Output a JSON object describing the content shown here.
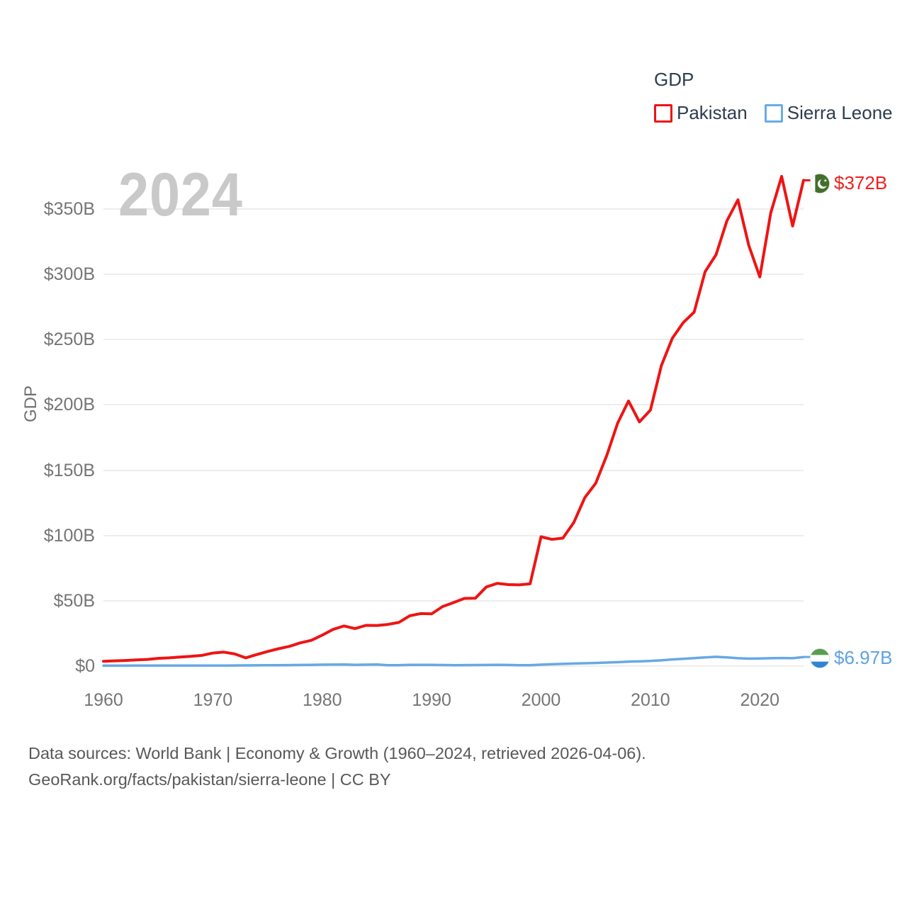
{
  "legend": {
    "title": "GDP",
    "items": [
      {
        "label": "Pakistan",
        "color": "#ee1414"
      },
      {
        "label": "Sierra Leone",
        "color": "#67a9e4"
      }
    ]
  },
  "watermark": "2024",
  "axes": {
    "y_title": "GDP",
    "y_ticks": [
      {
        "value": 0,
        "label": "$0"
      },
      {
        "value": 50,
        "label": "$50B"
      },
      {
        "value": 100,
        "label": "$100B"
      },
      {
        "value": 150,
        "label": "$150B"
      },
      {
        "value": 200,
        "label": "$200B"
      },
      {
        "value": 250,
        "label": "$250B"
      },
      {
        "value": 300,
        "label": "$300B"
      },
      {
        "value": 350,
        "label": "$350B"
      }
    ],
    "x_ticks": [
      {
        "value": 1960,
        "label": "1960"
      },
      {
        "value": 1970,
        "label": "1970"
      },
      {
        "value": 1980,
        "label": "1980"
      },
      {
        "value": 1990,
        "label": "1990"
      },
      {
        "value": 2000,
        "label": "2000"
      },
      {
        "value": 2010,
        "label": "2010"
      },
      {
        "value": 2020,
        "label": "2020"
      }
    ]
  },
  "end_labels": [
    {
      "series": "Pakistan",
      "label": "$372B",
      "flag": "pakistan-flag",
      "color": "#ee2020"
    },
    {
      "series": "Sierra Leone",
      "label": "$6.97B",
      "flag": "sierra-leone-flag",
      "color": "#5ea2e4"
    }
  ],
  "footer": {
    "line1": "Data sources: World Bank | Economy & Growth (1960–2024, retrieved 2026-04-06).",
    "line2": "GeoRank.org/facts/pakistan/sierra-leone | CC BY"
  },
  "chart_data": {
    "type": "line",
    "title": "GDP",
    "xlabel": "",
    "ylabel": "GDP",
    "xlim": [
      1960,
      2024
    ],
    "ylim": [
      0,
      380
    ],
    "grid": "horizontal",
    "legend_position": "top-right",
    "units": "billions of current US$",
    "x": [
      1960,
      1961,
      1962,
      1963,
      1964,
      1965,
      1966,
      1967,
      1968,
      1969,
      1970,
      1971,
      1972,
      1973,
      1974,
      1975,
      1976,
      1977,
      1978,
      1979,
      1980,
      1981,
      1982,
      1983,
      1984,
      1985,
      1986,
      1987,
      1988,
      1989,
      1990,
      1991,
      1992,
      1993,
      1994,
      1995,
      1996,
      1997,
      1998,
      1999,
      2000,
      2001,
      2002,
      2003,
      2004,
      2005,
      2006,
      2007,
      2008,
      2009,
      2010,
      2011,
      2012,
      2013,
      2014,
      2015,
      2016,
      2017,
      2018,
      2019,
      2020,
      2021,
      2022,
      2023,
      2024
    ],
    "series": [
      {
        "name": "Pakistan",
        "color": "#ee1414",
        "end_label": "$372B",
        "values": [
          3.7,
          4.0,
          4.3,
          4.7,
          5.1,
          5.9,
          6.3,
          6.9,
          7.5,
          8.2,
          10.0,
          10.7,
          9.3,
          6.3,
          8.8,
          11.2,
          13.3,
          15.1,
          17.8,
          19.7,
          23.7,
          28.1,
          30.7,
          28.7,
          31.2,
          31.1,
          31.9,
          33.4,
          38.5,
          40.2,
          40.0,
          45.6,
          48.6,
          51.8,
          52.0,
          60.6,
          63.3,
          62.4,
          62.2,
          63.0,
          99.0,
          97.0,
          98.0,
          110.0,
          129.0,
          140.0,
          161.0,
          186.0,
          203.0,
          187.0,
          196.0,
          230.0,
          251.0,
          263.0,
          271.0,
          302.0,
          315.0,
          341.0,
          357.0,
          322.0,
          298.0,
          347.0,
          375.0,
          337.0,
          372.0
        ]
      },
      {
        "name": "Sierra Leone",
        "color": "#67a9e4",
        "end_label": "$6.97B",
        "values": [
          0.32,
          0.33,
          0.35,
          0.36,
          0.38,
          0.4,
          0.39,
          0.37,
          0.36,
          0.4,
          0.43,
          0.45,
          0.49,
          0.55,
          0.62,
          0.68,
          0.64,
          0.75,
          0.89,
          1.0,
          1.1,
          1.14,
          1.18,
          1.0,
          1.07,
          1.19,
          0.71,
          0.68,
          1.0,
          0.93,
          0.9,
          0.8,
          0.68,
          0.77,
          0.83,
          0.87,
          0.94,
          0.85,
          0.67,
          0.67,
          1.1,
          1.4,
          1.7,
          1.95,
          2.15,
          2.4,
          2.7,
          3.0,
          3.4,
          3.6,
          3.9,
          4.4,
          5.1,
          5.6,
          6.1,
          6.6,
          7.1,
          6.6,
          6.0,
          5.7,
          5.8,
          6.0,
          6.2,
          6.0,
          6.97
        ]
      }
    ]
  }
}
